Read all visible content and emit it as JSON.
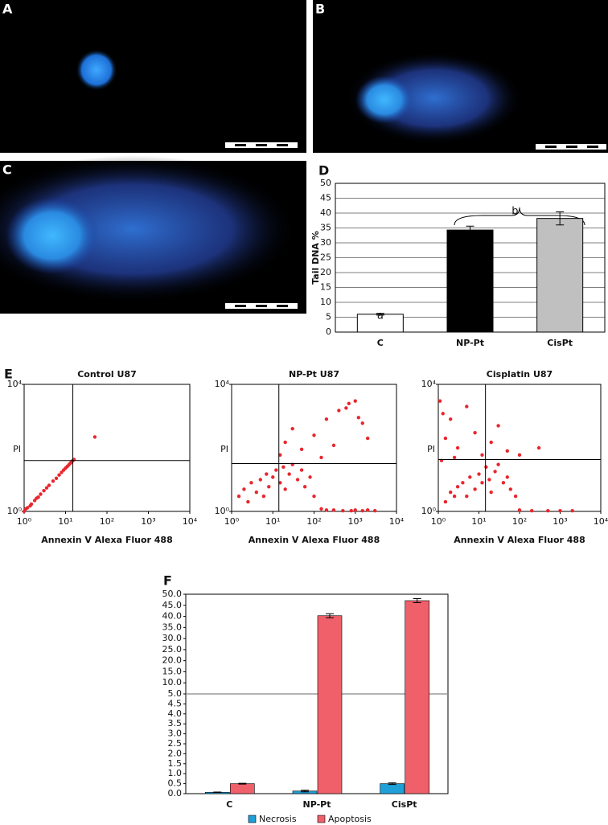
{
  "micrographs": [
    "A",
    "B",
    "C"
  ],
  "chart_data": [
    {
      "type": "bar",
      "panel_label": "D",
      "ylabel": "Tail DNA %",
      "categories": [
        "C",
        "NP-Pt",
        "CisPt"
      ],
      "values": [
        6,
        34.3,
        38.2
      ],
      "errors": [
        0.3,
        1.3,
        2.2
      ],
      "colors": [
        "#ffffff",
        "#000000",
        "#c0c0c0"
      ],
      "ylim": [
        0,
        50
      ],
      "yticks": [
        0,
        5,
        10,
        15,
        20,
        25,
        30,
        35,
        40,
        45,
        50
      ],
      "grid": true,
      "annotations": [
        {
          "text": "a"
        },
        {
          "text": "b"
        }
      ]
    },
    {
      "type": "scatter",
      "panel_label": "E",
      "title": "Control U87",
      "xlabel": "Annexin V Alexa Fluor 488",
      "ylabel": "PI",
      "xscale": "log",
      "yscale": "log",
      "xlim": [
        1,
        10000
      ],
      "ylim": [
        1,
        10000
      ],
      "xticks": [
        {
          "value": 1,
          "label": "10⁰"
        },
        {
          "value": 10,
          "label": "10¹"
        },
        {
          "value": 100,
          "label": "10²"
        },
        {
          "value": 1000,
          "label": "10³"
        },
        {
          "value": 10000,
          "label": "10⁴"
        }
      ],
      "yticks": [
        {
          "value": 1,
          "label": "10⁰"
        },
        {
          "value": 10000,
          "label": "10⁴"
        }
      ],
      "quadrant": [
        15,
        40
      ],
      "color": "#e8262d",
      "x": [
        1,
        1.2,
        1.5,
        1.8,
        2,
        2.5,
        3,
        3.5,
        4,
        5,
        6,
        7,
        8,
        9,
        10,
        11,
        12,
        13,
        14,
        15,
        16,
        1.1,
        1.4,
        2.2,
        51
      ],
      "y": [
        1,
        1.3,
        1.7,
        2.2,
        2.6,
        3.5,
        4.5,
        5.5,
        6.6,
        9,
        11,
        14,
        17,
        20,
        23,
        26,
        29,
        33,
        36,
        40,
        43,
        1.2,
        1.5,
        2.8,
        220
      ]
    },
    {
      "type": "scatter",
      "title": "NP-Pt U87",
      "xlabel": "Annexin V Alexa Fluor 488",
      "ylabel": "PI",
      "xscale": "log",
      "yscale": "log",
      "xlim": [
        1,
        10000
      ],
      "ylim": [
        1,
        10000
      ],
      "xticks": [
        {
          "value": 1,
          "label": "10⁰"
        },
        {
          "value": 10,
          "label": "10¹"
        },
        {
          "value": 100,
          "label": "10²"
        },
        {
          "value": 1000,
          "label": "10³"
        },
        {
          "value": 10000,
          "label": "10⁴"
        }
      ],
      "yticks": [
        {
          "value": 1,
          "label": "10⁰"
        },
        {
          "value": 10000,
          "label": "10⁴"
        }
      ],
      "quadrant": [
        14,
        32
      ],
      "color": "#e8262d",
      "x": [
        1.5,
        2,
        2.5,
        3,
        4,
        5,
        6,
        7,
        8,
        10,
        12,
        15,
        18,
        20,
        25,
        30,
        40,
        50,
        60,
        80,
        100,
        150,
        200,
        300,
        500,
        800,
        1000,
        1500,
        2000,
        3000,
        15,
        20,
        30,
        50,
        100,
        200,
        400,
        700,
        1000,
        1500,
        2000,
        150,
        300,
        600,
        1200
      ],
      "y": [
        3,
        5,
        2,
        8,
        4,
        10,
        3,
        15,
        6,
        12,
        20,
        8,
        25,
        5,
        15,
        30,
        10,
        20,
        6,
        12,
        3,
        1.2,
        1.1,
        1.1,
        1.05,
        1.05,
        1.1,
        1.05,
        1.1,
        1.05,
        60,
        150,
        400,
        90,
        250,
        800,
        1500,
        2500,
        3000,
        600,
        200,
        50,
        120,
        1800,
        900
      ]
    },
    {
      "type": "scatter",
      "title": "Cisplatin U87",
      "xlabel": "Annexin V Alexa Fluor 488",
      "ylabel": "PI",
      "xscale": "log",
      "yscale": "log",
      "xlim": [
        1,
        10000
      ],
      "ylim": [
        1,
        10000
      ],
      "xticks": [
        {
          "value": 1,
          "label": "10⁰"
        },
        {
          "value": 10,
          "label": "10¹"
        },
        {
          "value": 100,
          "label": "10²"
        },
        {
          "value": 1000,
          "label": "10³"
        },
        {
          "value": 10000,
          "label": "10⁴"
        }
      ],
      "yticks": [
        {
          "value": 1,
          "label": "10⁰"
        },
        {
          "value": 10000,
          "label": "10⁴"
        }
      ],
      "quadrant": [
        14.5,
        43
      ],
      "color": "#e8262d",
      "x": [
        1.5,
        2,
        2.5,
        3,
        4,
        5,
        6,
        8,
        10,
        12,
        15,
        18,
        20,
        25,
        30,
        40,
        50,
        60,
        80,
        100,
        200,
        500,
        1000,
        2000,
        1.2,
        1.5,
        2,
        3,
        5,
        8,
        12,
        20,
        30,
        50,
        100,
        300,
        1.1,
        1.3,
        2.5
      ],
      "y": [
        2,
        4,
        3,
        6,
        8,
        3,
        12,
        5,
        15,
        8,
        25,
        10,
        4,
        18,
        30,
        8,
        12,
        5,
        3,
        1.1,
        1.05,
        1.05,
        1.05,
        1.05,
        40,
        200,
        800,
        100,
        2000,
        300,
        60,
        150,
        500,
        80,
        60,
        100,
        3000,
        1200,
        50
      ]
    },
    {
      "type": "bar",
      "panel_label": "F",
      "categories": [
        "C",
        "NP-Pt",
        "CisPt"
      ],
      "series": [
        {
          "name": "Necrosis",
          "color": "#1fa0d8",
          "values": [
            0.07,
            0.13,
            0.5
          ],
          "errors": [
            0.01,
            0.04,
            0.04
          ]
        },
        {
          "name": "Apoptosis",
          "color": "#f0606a",
          "values": [
            0.5,
            40.3,
            47.1
          ],
          "errors": [
            0.02,
            0.9,
            0.9
          ]
        }
      ],
      "ylim": [
        0,
        50
      ],
      "ybreak": 5,
      "yticks": [
        {
          "value": 0,
          "label": "0.0"
        },
        {
          "value": 0.5,
          "label": "0.5"
        },
        {
          "value": 1,
          "label": "1.0"
        },
        {
          "value": 1.5,
          "label": "1.5"
        },
        {
          "value": 2,
          "label": "2.0"
        },
        {
          "value": 2.5,
          "label": "2.5"
        },
        {
          "value": 3,
          "label": "3.0"
        },
        {
          "value": 3.5,
          "label": "3.5"
        },
        {
          "value": 4,
          "label": "4.0"
        },
        {
          "value": 4.5,
          "label": "4.5"
        },
        {
          "value": 5,
          "label": "5.0"
        },
        {
          "value": 10,
          "label": "10.0"
        },
        {
          "value": 15,
          "label": "15.0"
        },
        {
          "value": 20,
          "label": "20.0"
        },
        {
          "value": 25,
          "label": "25.0"
        },
        {
          "value": 30,
          "label": "30.0"
        },
        {
          "value": 35,
          "label": "35.0"
        },
        {
          "value": 40,
          "label": "40.0"
        },
        {
          "value": 45,
          "label": "45.0"
        },
        {
          "value": 50,
          "label": "50.0"
        }
      ],
      "legend": "bottom"
    }
  ]
}
